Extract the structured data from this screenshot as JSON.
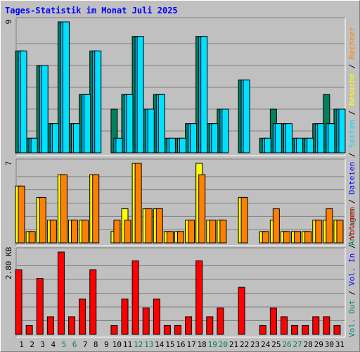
{
  "title": "Tages-Statistik im Monat Juli 2025",
  "colors": {
    "background": "#c0c0c0",
    "gridline": "#808080",
    "anfragen": "#00805c",
    "dateien": "#00c0ff",
    "seiten": "#00e0ff",
    "besuche": "#ffff00",
    "rechner": "#ff8000",
    "volumen": "#ff0000",
    "vol_in": "#0000ff",
    "vol_out": "#008080",
    "weekend_label": "#00805c",
    "title": "#0000ff"
  },
  "chart_data": [
    {
      "type": "bar",
      "panel": "top",
      "y_max_label": "9",
      "ylim": [
        0,
        9
      ],
      "categories": [
        "1",
        "2",
        "3",
        "4",
        "5",
        "6",
        "7",
        "8",
        "9",
        "10",
        "11",
        "12",
        "13",
        "14",
        "15",
        "16",
        "17",
        "18",
        "19",
        "20",
        "21",
        "22",
        "23",
        "24",
        "25",
        "26",
        "27",
        "28",
        "29",
        "30",
        "31"
      ],
      "series": [
        {
          "name": "Anfragen",
          "values": [
            7,
            1,
            6,
            2,
            9,
            2,
            4,
            7,
            0,
            3,
            4,
            8,
            3,
            4,
            1,
            1,
            2,
            8,
            2,
            3,
            0,
            5,
            0,
            1,
            3,
            2,
            1,
            1,
            2,
            4,
            3
          ]
        },
        {
          "name": "Dateien",
          "values": [
            7,
            1,
            6,
            2,
            9,
            2,
            4,
            7,
            0,
            1,
            4,
            8,
            3,
            4,
            1,
            1,
            2,
            8,
            2,
            3,
            0,
            5,
            0,
            1,
            2,
            2,
            1,
            1,
            2,
            2,
            3
          ]
        },
        {
          "name": "Seiten",
          "values": [
            7,
            1,
            6,
            2,
            9,
            2,
            4,
            7,
            0,
            1,
            4,
            8,
            3,
            4,
            1,
            1,
            2,
            8,
            2,
            3,
            0,
            5,
            0,
            1,
            2,
            2,
            1,
            1,
            2,
            2,
            3
          ]
        }
      ]
    },
    {
      "type": "bar",
      "panel": "middle",
      "y_max_label": "7",
      "ylim": [
        0,
        7
      ],
      "series": [
        {
          "name": "Besuche",
          "values": [
            5,
            1,
            4,
            2,
            6,
            2,
            2,
            6,
            0,
            1,
            3,
            7,
            3,
            3,
            1,
            1,
            2,
            7,
            2,
            2,
            0,
            4,
            0,
            1,
            2,
            1,
            1,
            1,
            2,
            2,
            2
          ]
        },
        {
          "name": "Rechner",
          "values": [
            5,
            1,
            4,
            2,
            6,
            2,
            2,
            6,
            0,
            2,
            2,
            7,
            3,
            3,
            1,
            1,
            2,
            6,
            2,
            2,
            0,
            4,
            0,
            1,
            3,
            1,
            1,
            1,
            2,
            3,
            2
          ]
        }
      ]
    },
    {
      "type": "bar",
      "panel": "bottom",
      "y_max_label": "2.80 KB",
      "ylim": [
        0,
        2.8
      ],
      "series": [
        {
          "name": "Volumen",
          "values": [
            2.2,
            0.3,
            1.9,
            0.6,
            2.8,
            0.6,
            1.2,
            2.2,
            0,
            0.3,
            1.2,
            2.5,
            0.9,
            1.2,
            0.3,
            0.3,
            0.6,
            2.5,
            0.6,
            0.9,
            0,
            1.6,
            0,
            0.3,
            0.9,
            0.6,
            0.3,
            0.3,
            0.6,
            0.6,
            0.3
          ]
        },
        {
          "name": "Vol. In",
          "values": [
            0,
            0,
            0,
            0,
            0,
            0,
            0,
            0,
            0,
            0,
            0,
            0,
            0,
            0,
            0,
            0,
            0,
            0,
            0,
            0,
            0,
            0,
            0,
            0,
            0,
            0,
            0,
            0,
            0,
            0,
            0
          ]
        },
        {
          "name": "Vol. Out",
          "values": [
            0,
            0,
            0,
            0,
            0,
            0,
            0,
            0,
            0,
            0,
            0,
            0,
            0,
            0,
            0,
            0,
            0,
            0,
            0,
            0,
            0,
            0,
            0,
            0,
            0,
            0,
            0,
            0,
            0,
            0,
            0
          ]
        }
      ]
    }
  ],
  "weekend_days": [
    5,
    6,
    12,
    13,
    19,
    20,
    26,
    27
  ],
  "legend_right": {
    "top": [
      {
        "text": "Anfragen",
        "color": "#00805c"
      },
      {
        "text": "/",
        "color": "#000000"
      },
      {
        "text": "Dateien",
        "color": "#0000ff"
      },
      {
        "text": "/",
        "color": "#000000"
      },
      {
        "text": "Seiten",
        "color": "#00e0ff"
      },
      {
        "text": "/",
        "color": "#000000"
      },
      {
        "text": "Besuche",
        "color": "#ffff00"
      },
      {
        "text": "/",
        "color": "#000000"
      },
      {
        "text": "Rechner",
        "color": "#ff8000"
      }
    ],
    "bottom": [
      {
        "text": "Vol. Out",
        "color": "#008080"
      },
      {
        "text": "/",
        "color": "#000000"
      },
      {
        "text": "Vol. In",
        "color": "#0000ff"
      },
      {
        "text": "/",
        "color": "#000000"
      },
      {
        "text": "Volumen",
        "color": "#ff0000"
      }
    ]
  }
}
